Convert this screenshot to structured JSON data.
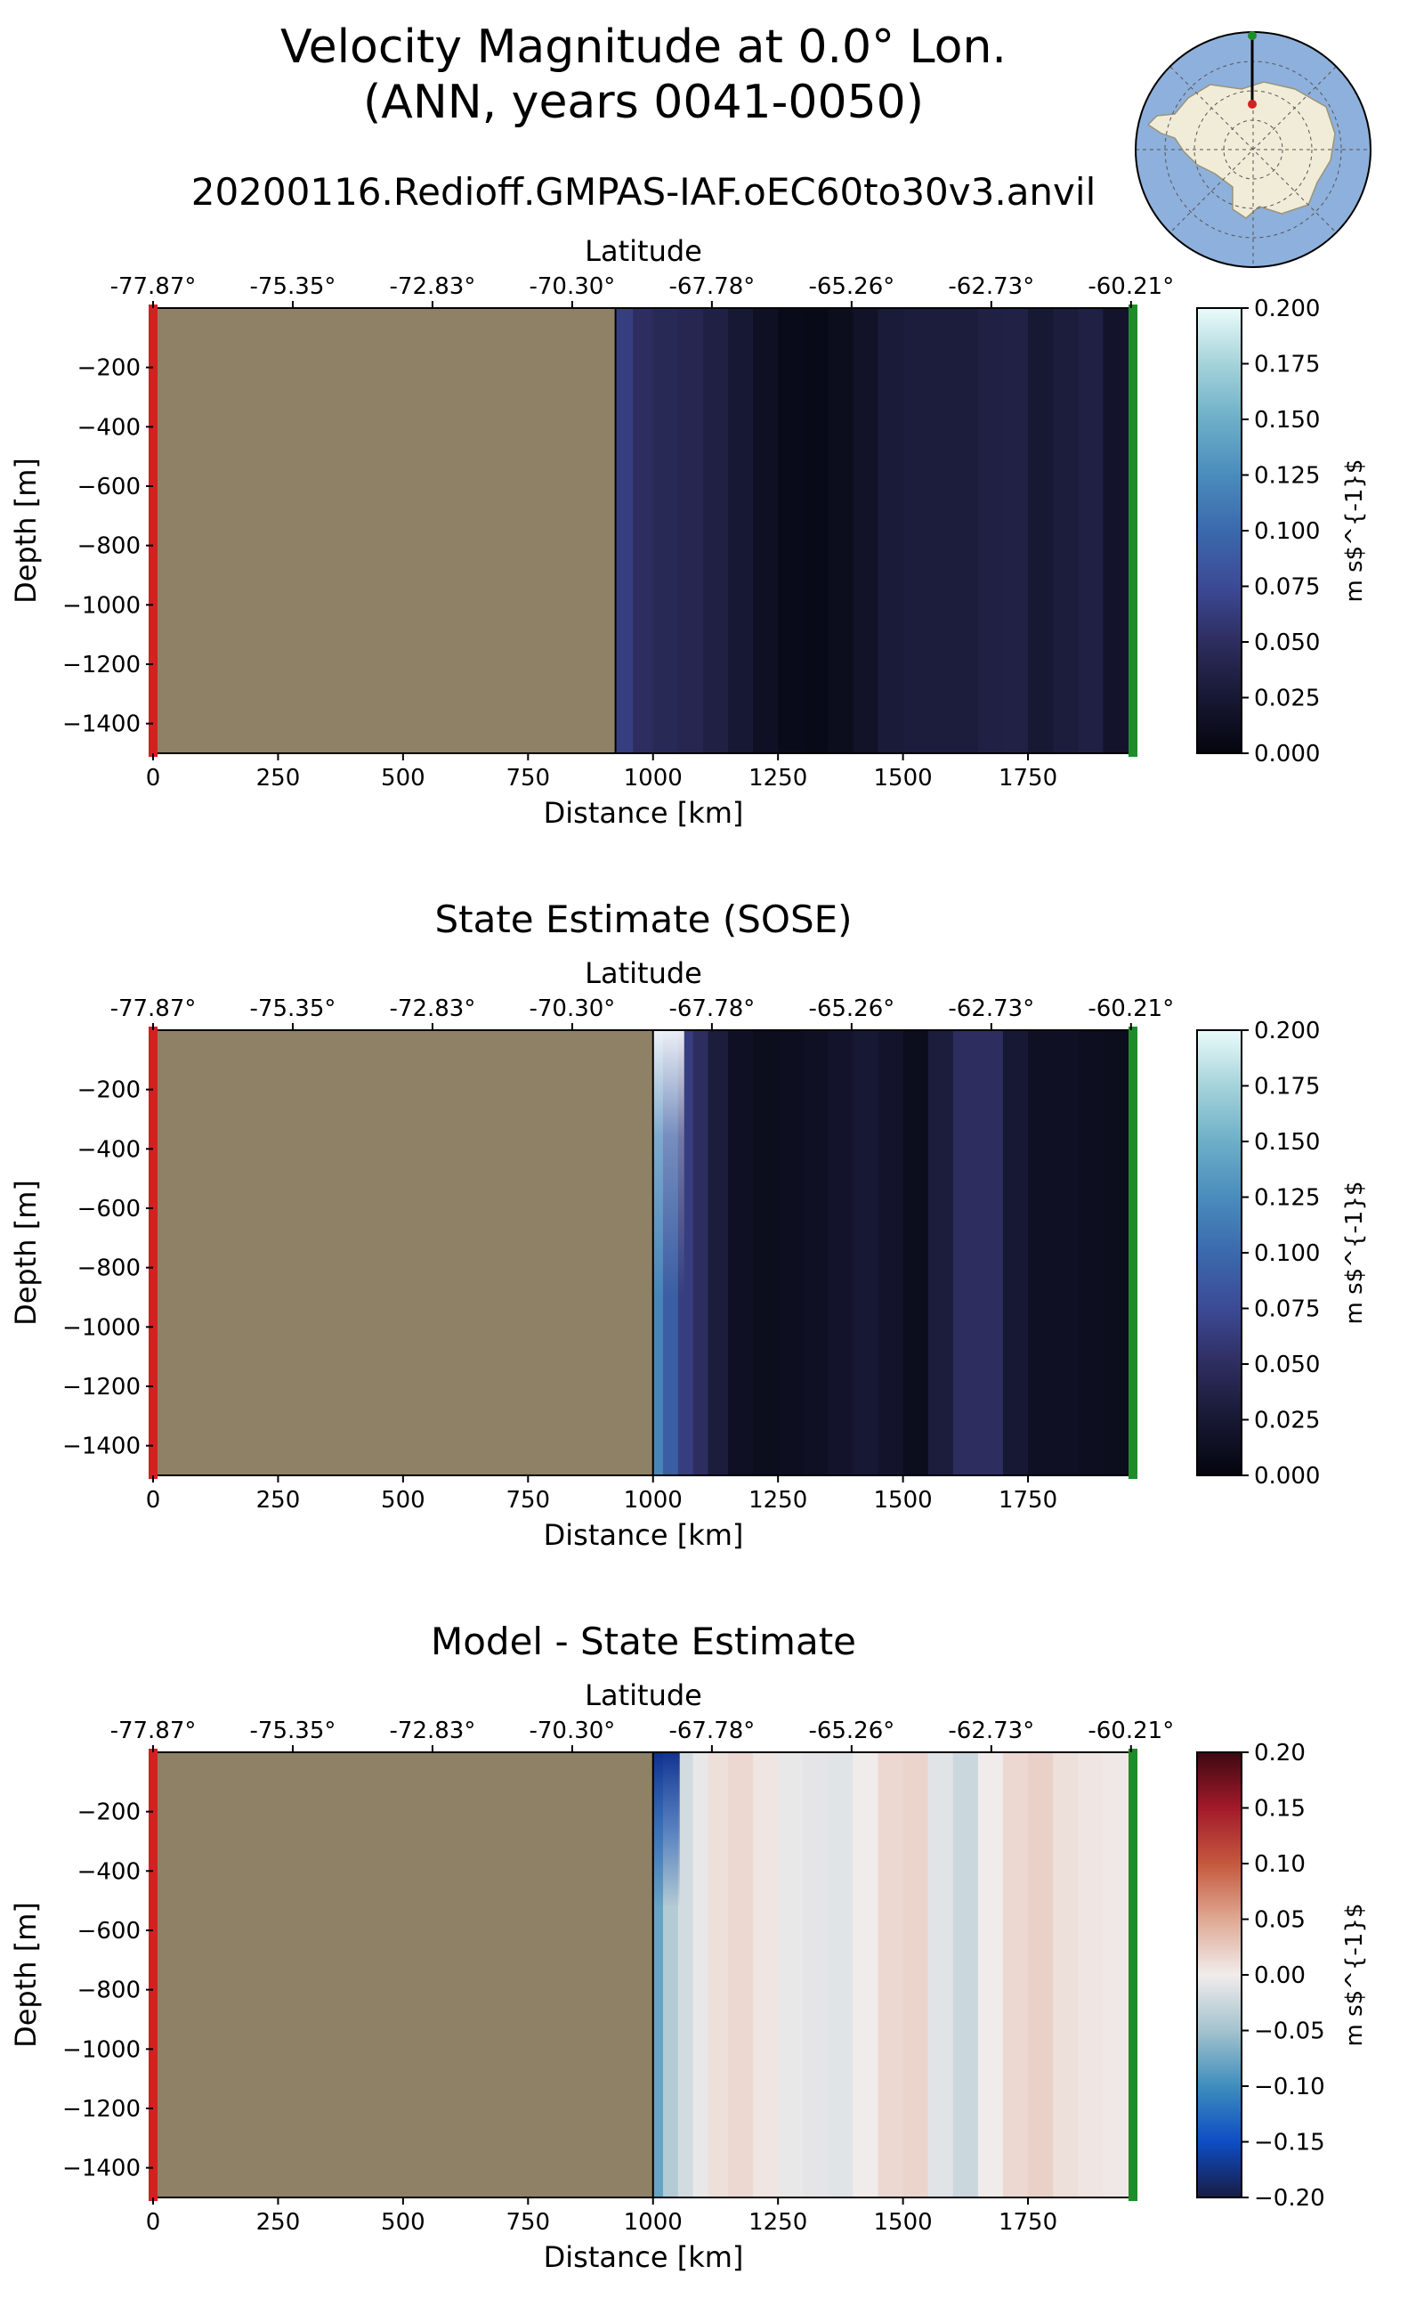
{
  "header": {
    "title_line1": "Velocity Magnitude at 0.0° Lon.",
    "title_line2": "(ANN, years 0041-0050)",
    "subtitle": "20200116.Redioff.GMPAS-IAF.oEC60to30v3.anvil"
  },
  "axes": {
    "latitude_label": "Latitude",
    "latitude_ticks": [
      "-77.87°",
      "-75.35°",
      "-72.83°",
      "-70.30°",
      "-67.78°",
      "-65.26°",
      "-62.73°",
      "-60.21°"
    ],
    "depth_label": "Depth [m]",
    "depth_ticks": [
      "−200",
      "−400",
      "−600",
      "−800",
      "−1000",
      "−1200",
      "−1400"
    ],
    "distance_label": "Distance [km]",
    "distance_ticks": [
      "0",
      "250",
      "500",
      "750",
      "1000",
      "1250",
      "1500",
      "1750"
    ]
  },
  "colors": {
    "land": "#8f8165",
    "start_marker": "#d42020",
    "end_marker": "#1f8c2b",
    "ocean_map": "#8eb0dc",
    "antarctica": "#f0ecd8"
  },
  "chart_data": [
    {
      "type": "heatmap",
      "panel": "model",
      "title": "",
      "xlabel": "Distance [km]",
      "ylabel": "Depth [m]",
      "top_label": "Latitude",
      "xlim": [
        0,
        1960
      ],
      "ylim": [
        -1500,
        0
      ],
      "land_until_km": 925,
      "colormap": "ice",
      "colorbar": {
        "label": "m s$^{-1}$",
        "ticks": [
          "0.000",
          "0.025",
          "0.050",
          "0.075",
          "0.100",
          "0.125",
          "0.150",
          "0.175",
          "0.200"
        ],
        "range": [
          0.0,
          0.2
        ]
      },
      "profile_km": [
        925,
        960,
        1000,
        1050,
        1100,
        1150,
        1200,
        1250,
        1300,
        1350,
        1400,
        1450,
        1500,
        1550,
        1600,
        1650,
        1700,
        1750,
        1800,
        1850,
        1900,
        1960
      ],
      "profile_values": [
        0.065,
        0.05,
        0.045,
        0.042,
        0.035,
        0.025,
        0.015,
        0.008,
        0.006,
        0.01,
        0.018,
        0.028,
        0.03,
        0.03,
        0.03,
        0.035,
        0.036,
        0.025,
        0.03,
        0.035,
        0.02,
        0.005
      ]
    },
    {
      "type": "heatmap",
      "panel": "sose",
      "title": "State Estimate (SOSE)",
      "xlabel": "Distance [km]",
      "ylabel": "Depth [m]",
      "top_label": "Latitude",
      "xlim": [
        0,
        1960
      ],
      "ylim": [
        -1500,
        0
      ],
      "land_until_km": 1000,
      "colormap": "ice",
      "colorbar": {
        "label": "m s$^{-1}$",
        "ticks": [
          "0.000",
          "0.025",
          "0.050",
          "0.075",
          "0.100",
          "0.125",
          "0.150",
          "0.175",
          "0.200"
        ],
        "range": [
          0.0,
          0.2
        ]
      },
      "profile_km": [
        1000,
        1020,
        1050,
        1080,
        1110,
        1150,
        1200,
        1250,
        1300,
        1350,
        1400,
        1450,
        1500,
        1550,
        1600,
        1650,
        1700,
        1750,
        1800,
        1850,
        1900,
        1960
      ],
      "profile_values": [
        0.12,
        0.09,
        0.065,
        0.05,
        0.03,
        0.015,
        0.01,
        0.012,
        0.015,
        0.02,
        0.025,
        0.02,
        0.01,
        0.03,
        0.05,
        0.05,
        0.025,
        0.015,
        0.015,
        0.012,
        0.01,
        0.005
      ]
    },
    {
      "type": "heatmap",
      "panel": "difference",
      "title": "Model - State Estimate",
      "xlabel": "Distance [km]",
      "ylabel": "Depth [m]",
      "top_label": "Latitude",
      "xlim": [
        0,
        1960
      ],
      "ylim": [
        -1500,
        0
      ],
      "land_until_km": 1000,
      "colormap": "balance",
      "colorbar": {
        "label": "m s$^{-1}$",
        "ticks": [
          "0.20",
          "0.15",
          "0.10",
          "0.05",
          "0.00",
          "−0.05",
          "−0.10",
          "−0.15",
          "−0.20"
        ],
        "range": [
          -0.2,
          0.2
        ]
      },
      "profile_km": [
        1000,
        1020,
        1050,
        1080,
        1110,
        1150,
        1200,
        1250,
        1300,
        1350,
        1400,
        1450,
        1500,
        1550,
        1600,
        1650,
        1700,
        1750,
        1800,
        1850,
        1900,
        1960
      ],
      "profile_values": [
        -0.08,
        -0.04,
        -0.02,
        -0.005,
        0.01,
        0.015,
        0.005,
        -0.005,
        -0.008,
        -0.01,
        0.0,
        0.015,
        0.018,
        -0.01,
        -0.025,
        0.0,
        0.015,
        0.02,
        0.01,
        0.005,
        0.003,
        0.0
      ]
    }
  ]
}
